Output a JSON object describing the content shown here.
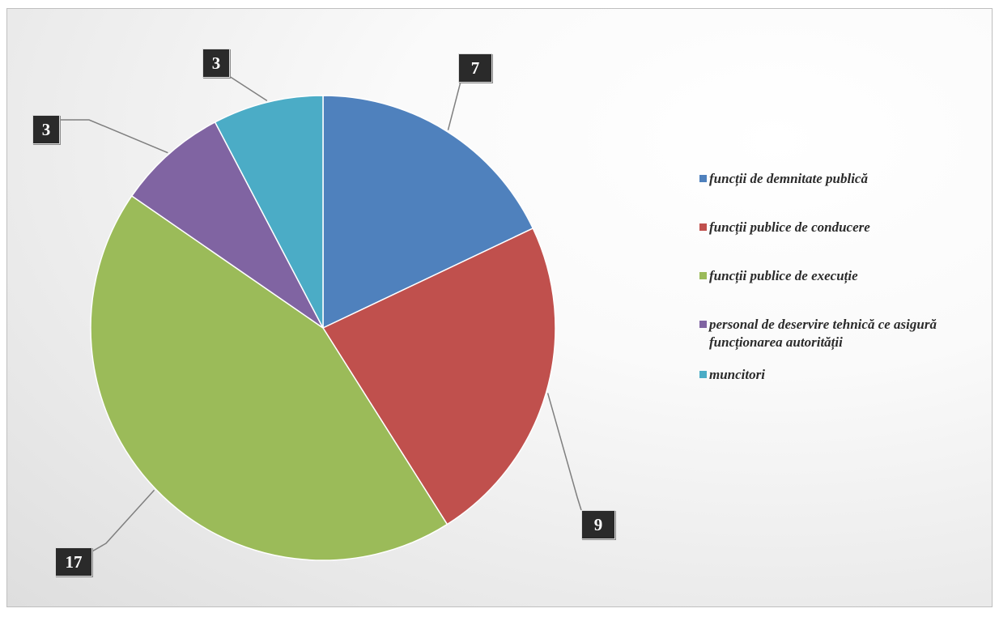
{
  "chart_data": {
    "type": "pie",
    "slices": [
      {
        "label": "funcții de demnitate publică",
        "value": 7,
        "color": "#4f81bd"
      },
      {
        "label": "funcții publice de conducere",
        "value": 9,
        "color": "#c0504d"
      },
      {
        "label": "funcții publice de execuție",
        "value": 17,
        "color": "#9bbb59"
      },
      {
        "label": "personal de deservire tehnică ce asigură funcționarea autorității",
        "value": 3,
        "color": "#8064a2"
      },
      {
        "label": "muncitori",
        "value": 3,
        "color": "#4bacc6"
      }
    ],
    "data_labels": [
      "7",
      "9",
      "17",
      "3",
      "3"
    ],
    "start_angle": "12 o'clock",
    "direction": "clockwise",
    "legend_position": "right"
  }
}
